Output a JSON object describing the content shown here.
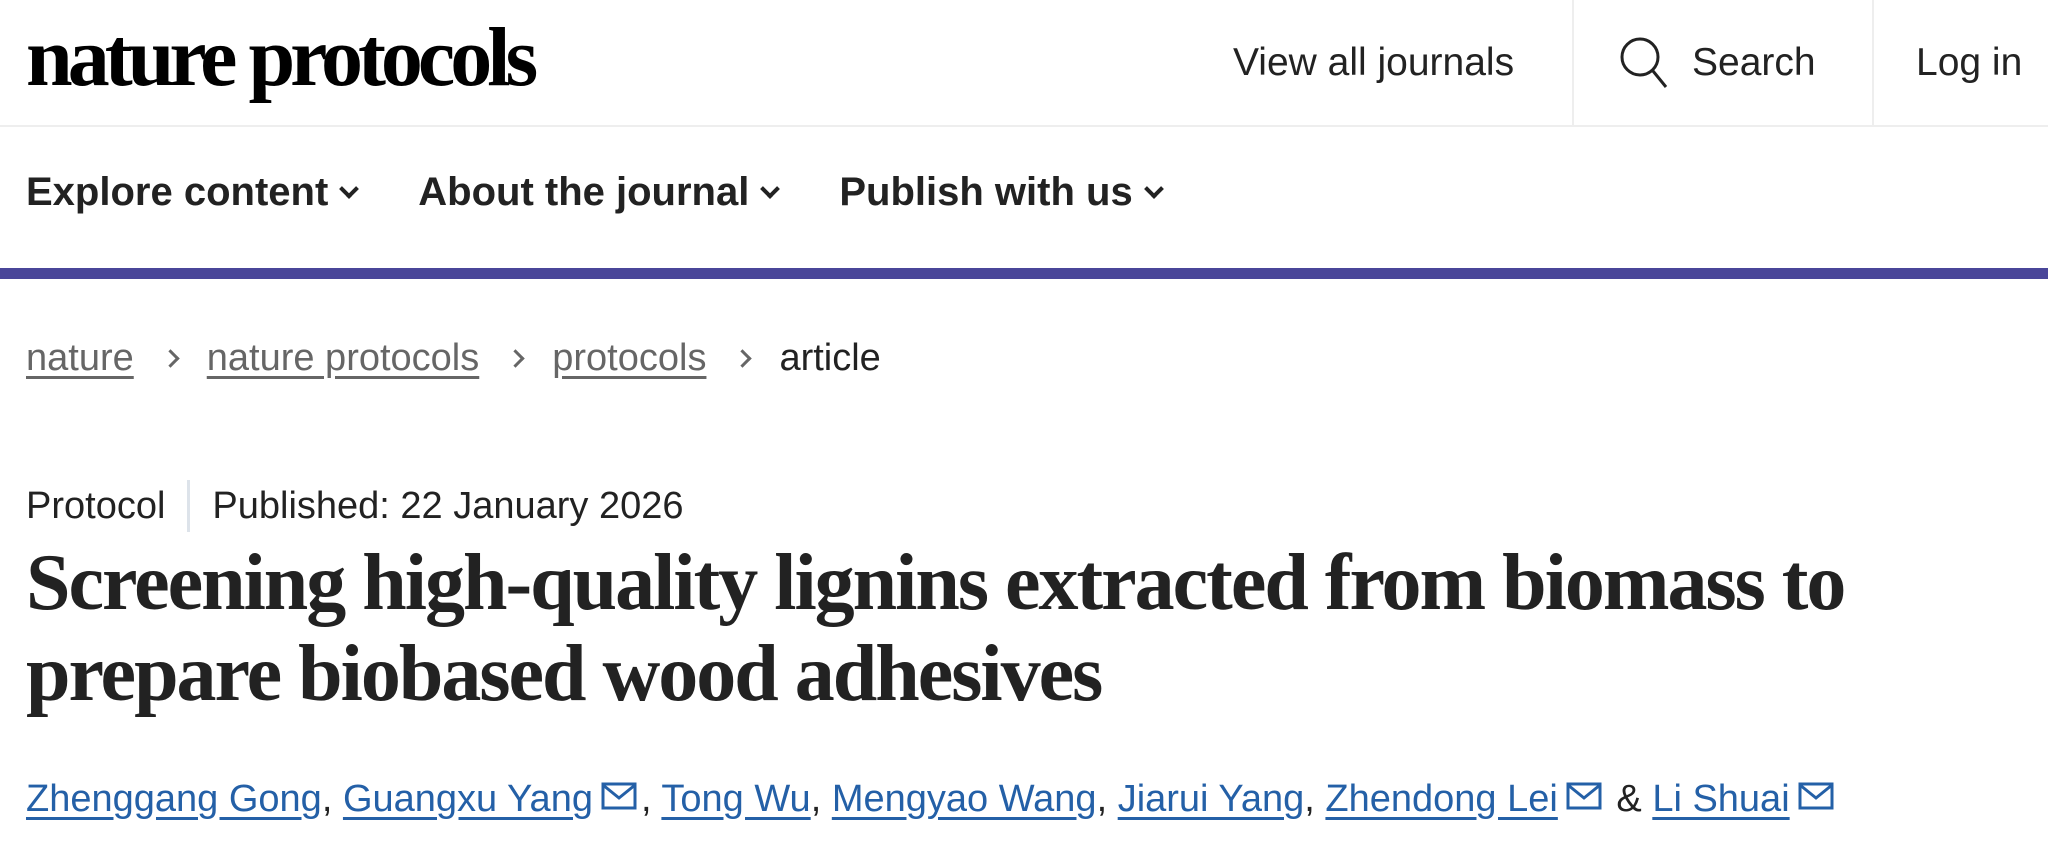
{
  "header": {
    "logo": "nature protocols",
    "view_all_journals": "View all journals",
    "search": "Search",
    "login": "Log in"
  },
  "nav": [
    {
      "label": "Explore content"
    },
    {
      "label": "About the journal"
    },
    {
      "label": "Publish with us"
    }
  ],
  "accent_color": "#4a4699",
  "link_color": "#2460a7",
  "breadcrumb": [
    {
      "label": "nature"
    },
    {
      "label": "nature protocols"
    },
    {
      "label": "protocols"
    },
    {
      "label": "article"
    }
  ],
  "article": {
    "type": "Protocol",
    "published": "Published: 22 January 2026",
    "title": "Screening high-quality lignins extracted from biomass to prepare biobased wood adhesives",
    "authors": [
      {
        "name": "Zhenggang Gong",
        "email": false,
        "after": ", "
      },
      {
        "name": "Guangxu Yang",
        "email": true,
        "after": ", "
      },
      {
        "name": "Tong Wu",
        "email": false,
        "after": ", "
      },
      {
        "name": "Mengyao Wang",
        "email": false,
        "after": ", "
      },
      {
        "name": "Jiarui Yang",
        "email": false,
        "after": ", "
      },
      {
        "name": "Zhendong Lei",
        "email": true,
        "after": " & "
      },
      {
        "name": "Li Shuai",
        "email": true,
        "after": ""
      }
    ]
  }
}
